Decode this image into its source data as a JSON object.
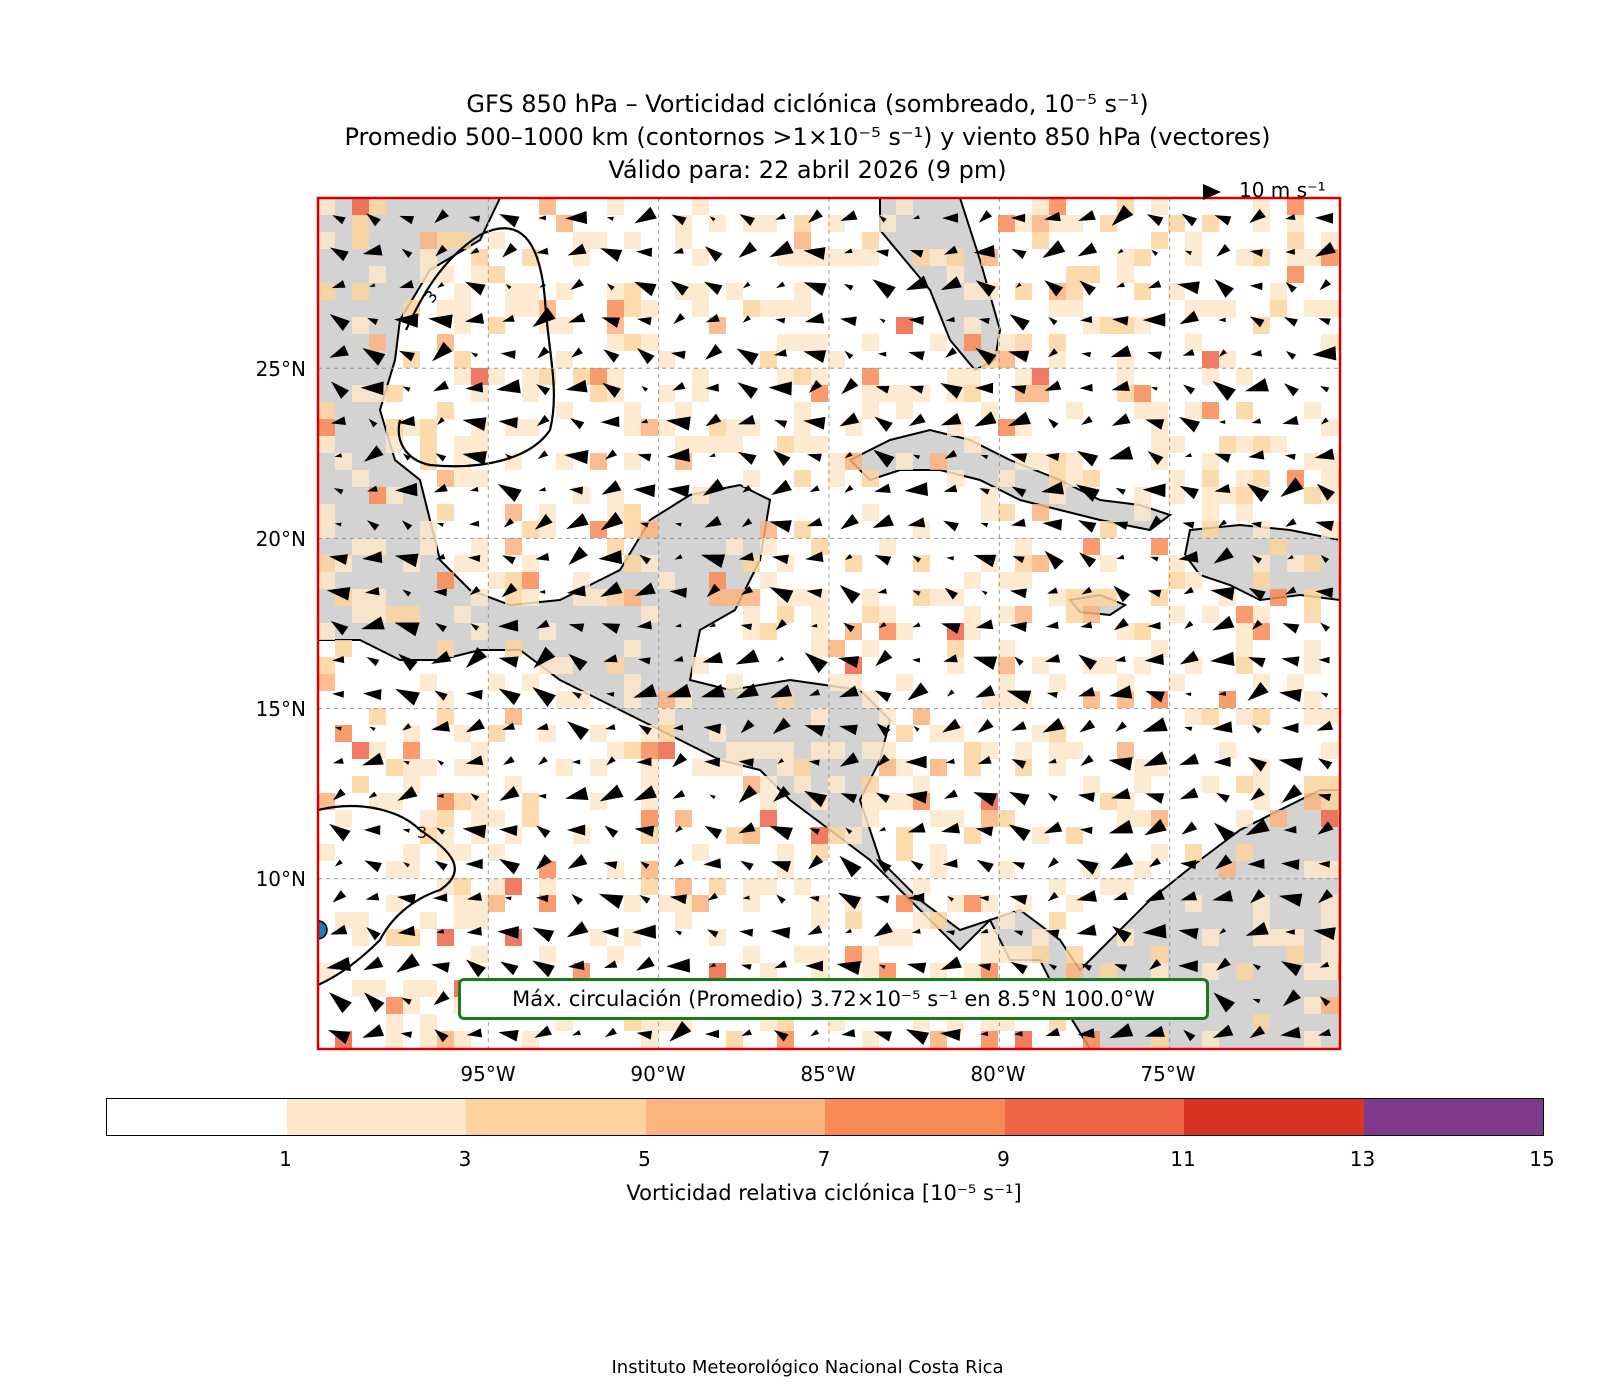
{
  "title_lines": [
    "GFS 850 hPa – Vorticidad ciclónica (sombreado, 10⁻⁵ s⁻¹)",
    "Promedio 500–1000 km (contornos >1×10⁻⁵ s⁻¹) y viento 850 hPa (vectores)",
    "Válido para: 22 abril 2026 (9 pm)"
  ],
  "reference_vector": "10 m s⁻¹",
  "map_extent": {
    "lon_min": -100,
    "lon_max": -70,
    "lat_min": 5,
    "lat_max": 30
  },
  "lat_labels": [
    {
      "lat": 25,
      "text": "25°N"
    },
    {
      "lat": 20,
      "text": "20°N"
    },
    {
      "lat": 15,
      "text": "15°N"
    },
    {
      "lat": 10,
      "text": "10°N"
    }
  ],
  "lon_labels": [
    {
      "lon": -95,
      "text": "95°W"
    },
    {
      "lon": -90,
      "text": "90°W"
    },
    {
      "lon": -85,
      "text": "85°W"
    },
    {
      "lon": -80,
      "text": "80°W"
    },
    {
      "lon": -75,
      "text": "75°W"
    }
  ],
  "contour_label": "3",
  "max_circulation_text": "Máx. circulación (Promedio) 3.72×10⁻⁵ s⁻¹ en 8.5°N 100.0°W",
  "max_point": {
    "lat": 8.5,
    "lon": -100.0,
    "value": 3.72
  },
  "colorbar": {
    "label": "Vorticidad relativa ciclónica [10⁻⁵ s⁻¹]",
    "bounds": [
      1,
      3,
      5,
      7,
      9,
      11,
      13,
      15
    ],
    "tick_labels": [
      "1",
      "3",
      "5",
      "7",
      "9",
      "11",
      "13",
      "15"
    ],
    "colors": [
      "#ffffff",
      "#fee6c8",
      "#fdd39e",
      "#fcb37e",
      "#f98a55",
      "#ef6447",
      "#d93322",
      "#7f3a8e"
    ]
  },
  "land_color": "#d3d3d3",
  "border_color": "#d40000",
  "credit": "Instituto Meteorológico Nacional Costa Rica"
}
